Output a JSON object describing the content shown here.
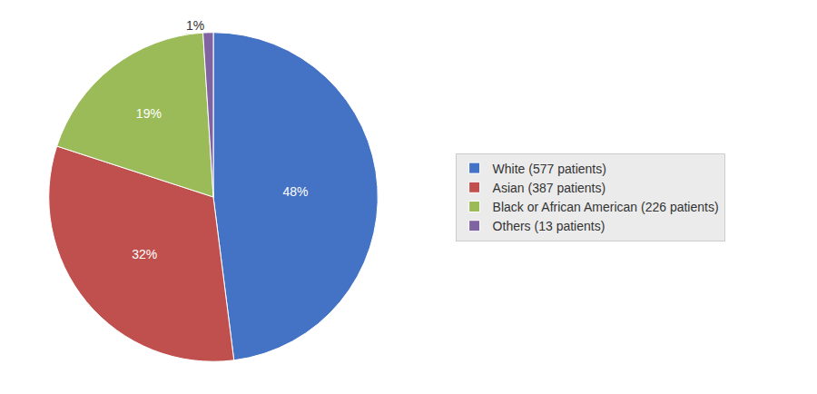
{
  "chart_data": {
    "type": "pie",
    "categories": [
      "White (577 patients)",
      "Asian (387 patients)",
      "Black or African American (226 patients)",
      "Others (13 patients)"
    ],
    "values": [
      48,
      32,
      19,
      1
    ],
    "value_labels": [
      "48%",
      "32%",
      "19%",
      "1%"
    ],
    "colors": [
      "#4472C4",
      "#C0504D",
      "#9BBB59",
      "#8064A2"
    ],
    "data_labels": true,
    "legend": "right"
  }
}
